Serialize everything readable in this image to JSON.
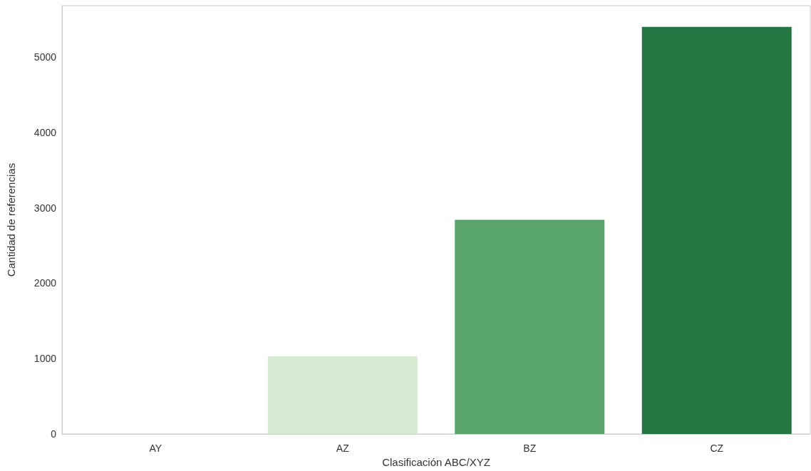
{
  "chart_data": {
    "type": "bar",
    "xlabel": "Clasificación ABC/XYZ",
    "ylabel": "Cantidad de referencias",
    "categories": [
      "AY",
      "AZ",
      "BZ",
      "CZ"
    ],
    "values": [
      0,
      1030,
      2840,
      5400
    ],
    "colors": [
      "#edf8e9",
      "#d6ebd1",
      "#58a46c",
      "#237541"
    ],
    "ylim": [
      0,
      5680
    ],
    "yticks": [
      0,
      1000,
      2000,
      3000,
      4000,
      5000
    ],
    "grid": false
  }
}
